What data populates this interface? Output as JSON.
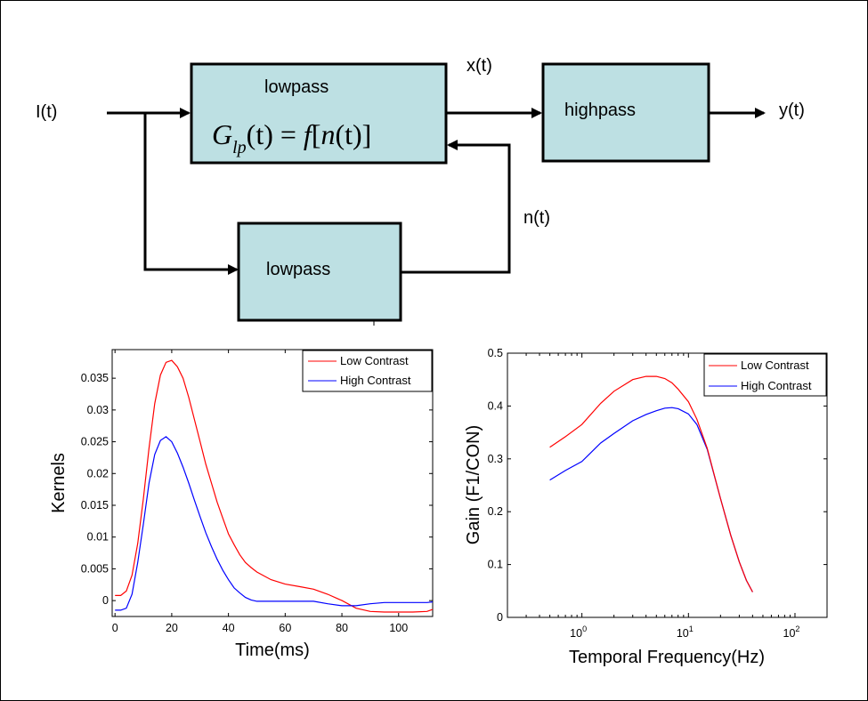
{
  "diagram": {
    "input_label": "I(t)",
    "x_label": "x(t)",
    "n_label": "n(t)",
    "output_label": "y(t)",
    "top_block_label": "lowpass",
    "bottom_block_label": "lowpass",
    "highpass_label": "highpass",
    "formula": {
      "G": "G",
      "sub": "lp",
      "t_arg": "(t)",
      "eq": "=",
      "f": "f",
      "lbr": "[",
      "n": "n",
      "nt": "(t)",
      "rbr": "]"
    },
    "box_fill": "#bde0e3"
  },
  "chart_data": [
    {
      "type": "line",
      "title": "",
      "xlabel": "Time(ms)",
      "ylabel": "Kernels",
      "xlim": [
        -1,
        112
      ],
      "ylim": [
        -0.0025,
        0.0395
      ],
      "xticks": [
        0,
        20,
        40,
        60,
        80,
        100
      ],
      "xtick_labels": [
        "0",
        "20",
        "40",
        "60",
        "80",
        "100"
      ],
      "yticks": [
        0,
        0.005,
        0.01,
        0.015,
        0.02,
        0.025,
        0.03,
        0.035
      ],
      "ytick_labels": [
        "0",
        "0.005",
        "0.01",
        "0.015",
        "0.02",
        "0.025",
        "0.03",
        "0.035"
      ],
      "legend_position": "top-right",
      "grid": false,
      "series": [
        {
          "name": "Low Contrast",
          "color": "#ff0000",
          "x": [
            0,
            2,
            4,
            6,
            8,
            10,
            12,
            14,
            16,
            18,
            20,
            22,
            24,
            26,
            28,
            30,
            32,
            34,
            36,
            38,
            40,
            42,
            44,
            46,
            48,
            50,
            55,
            60,
            65,
            70,
            75,
            80,
            85,
            90,
            95,
            100,
            105,
            110,
            112
          ],
          "y": [
            0.0008,
            0.0008,
            0.0015,
            0.004,
            0.009,
            0.016,
            0.024,
            0.031,
            0.0355,
            0.0375,
            0.0378,
            0.0368,
            0.035,
            0.032,
            0.0285,
            0.025,
            0.0215,
            0.0185,
            0.0155,
            0.013,
            0.0105,
            0.0088,
            0.0072,
            0.006,
            0.0052,
            0.0045,
            0.0033,
            0.0026,
            0.0022,
            0.0018,
            0.001,
            0.0,
            -0.0012,
            -0.0017,
            -0.0018,
            -0.0018,
            -0.0018,
            -0.0017,
            -0.0014
          ]
        },
        {
          "name": "High Contrast",
          "color": "#0000ff",
          "x": [
            0,
            2,
            4,
            6,
            8,
            10,
            12,
            14,
            16,
            18,
            20,
            22,
            24,
            26,
            28,
            30,
            32,
            34,
            36,
            38,
            40,
            42,
            44,
            46,
            48,
            50,
            55,
            60,
            65,
            70,
            75,
            80,
            85,
            90,
            95,
            100,
            105,
            110,
            112
          ],
          "y": [
            -0.0015,
            -0.0015,
            -0.0012,
            0.001,
            0.006,
            0.012,
            0.0185,
            0.023,
            0.0252,
            0.0258,
            0.025,
            0.0232,
            0.021,
            0.0185,
            0.0158,
            0.0132,
            0.0107,
            0.0085,
            0.0065,
            0.0048,
            0.0033,
            0.002,
            0.0012,
            0.0005,
            0.0001,
            -0.0001,
            -0.0001,
            -0.0001,
            -0.0001,
            -0.0001,
            -0.0005,
            -0.0008,
            -0.0008,
            -0.0005,
            -0.0003,
            -0.0003,
            -0.0003,
            -0.0003,
            -0.0002
          ]
        }
      ]
    },
    {
      "type": "line",
      "title": "",
      "xlabel": "Temporal Frequency(Hz)",
      "ylabel": "Gain (F1/CON)",
      "xscale": "log",
      "xlim": [
        0.2,
        200
      ],
      "ylim": [
        0,
        0.5
      ],
      "xticks": [
        1,
        10,
        100
      ],
      "xtick_bases": [
        "10",
        "10",
        "10"
      ],
      "xtick_exps": [
        "0",
        "1",
        "2"
      ],
      "yticks": [
        0,
        0.1,
        0.2,
        0.3,
        0.4,
        0.5
      ],
      "ytick_labels": [
        "0",
        "0.1",
        "0.2",
        "0.3",
        "0.4",
        "0.5"
      ],
      "legend_position": "top-right",
      "grid": false,
      "series": [
        {
          "name": "Low Contrast",
          "color": "#ff0000",
          "x": [
            0.5,
            0.7,
            1.0,
            1.5,
            2.0,
            3.0,
            4.0,
            5.0,
            6.0,
            7.0,
            8.0,
            10.0,
            12.0,
            15.0,
            20.0,
            25.0,
            30.0,
            35.0,
            40.0
          ],
          "y": [
            0.322,
            0.342,
            0.365,
            0.405,
            0.428,
            0.45,
            0.456,
            0.456,
            0.452,
            0.444,
            0.432,
            0.408,
            0.375,
            0.32,
            0.225,
            0.155,
            0.105,
            0.07,
            0.048
          ]
        },
        {
          "name": "High Contrast",
          "color": "#0000ff",
          "x": [
            0.5,
            0.7,
            1.0,
            1.5,
            2.0,
            3.0,
            4.0,
            5.0,
            6.0,
            7.0,
            8.0,
            10.0,
            12.0,
            15.0,
            20.0,
            25.0,
            30.0,
            35.0,
            40.0
          ],
          "y": [
            0.26,
            0.278,
            0.295,
            0.33,
            0.348,
            0.372,
            0.384,
            0.391,
            0.396,
            0.397,
            0.395,
            0.385,
            0.365,
            0.318,
            0.225,
            0.155,
            0.105,
            0.07,
            0.048
          ]
        }
      ]
    }
  ]
}
